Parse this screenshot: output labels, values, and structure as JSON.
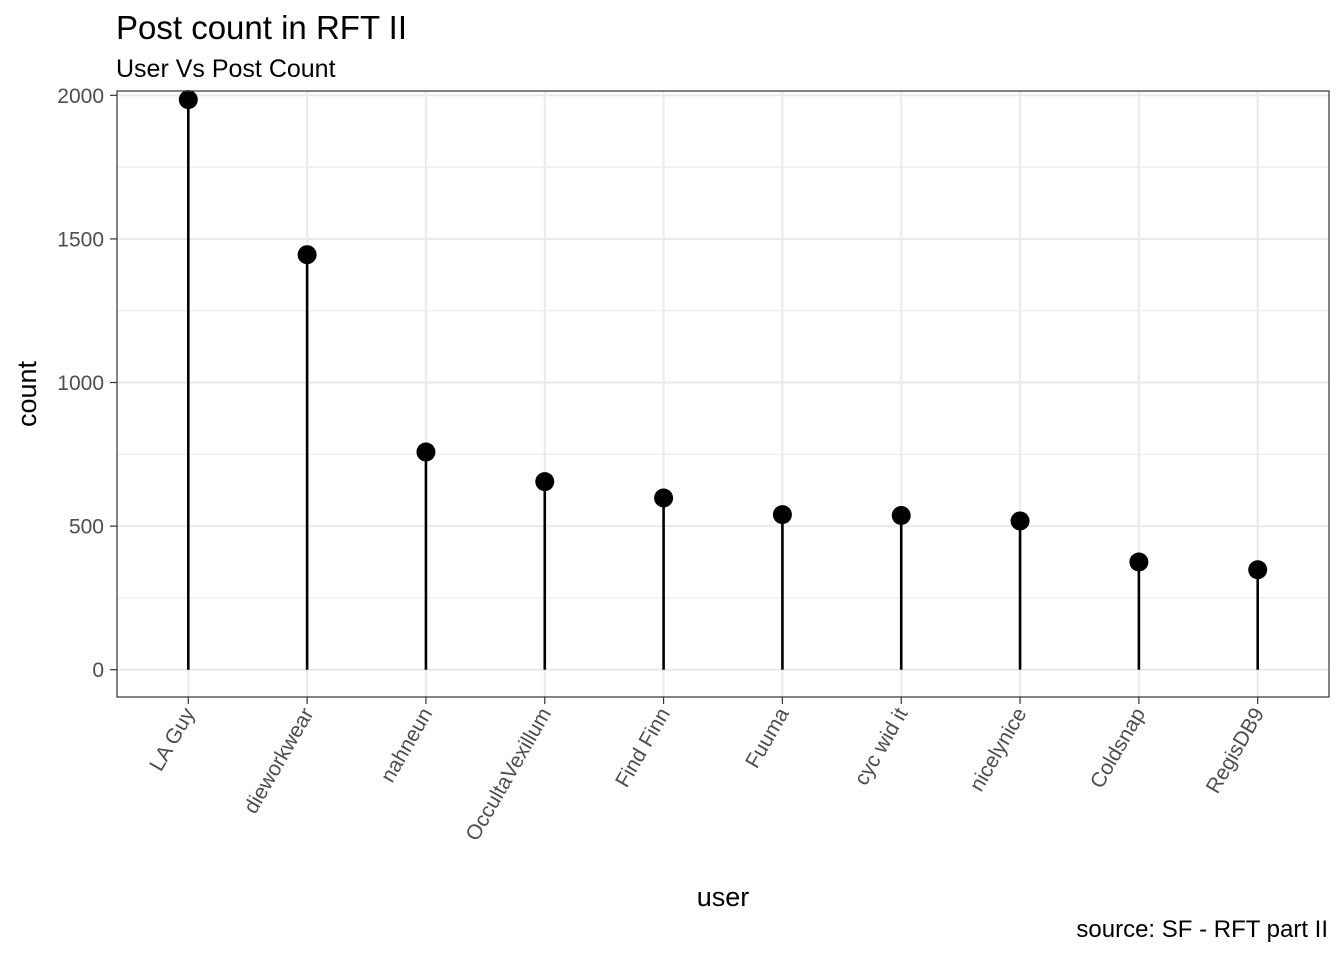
{
  "chart_data": {
    "type": "scatter",
    "title": "Post count in RFT II",
    "subtitle": "User Vs Post Count",
    "caption": "source: SF - RFT part II",
    "xlabel": "user",
    "ylabel": "count",
    "categories": [
      "LA Guy",
      "dieworkwear",
      "nahneun",
      "OccultaVexillum",
      "Find Finn",
      "Fuuma",
      "cyc wid it",
      "nicelynice",
      "Coldsnap",
      "RegisDB9"
    ],
    "values": [
      1985,
      1445,
      758,
      655,
      598,
      540,
      537,
      518,
      375,
      348
    ],
    "ylim": [
      -95,
      2015
    ],
    "yticks": [
      0,
      500,
      1000,
      1500,
      2000
    ],
    "minor_yticks": [
      250,
      750,
      1250,
      1750
    ],
    "grid": true,
    "legend": "none",
    "marks": "lollipop",
    "colors": {
      "background": "#ffffff",
      "grid": "#ebebeb",
      "marks": "#000000",
      "axis_text": "#4d4d4d",
      "panel_border": "#333333"
    }
  }
}
